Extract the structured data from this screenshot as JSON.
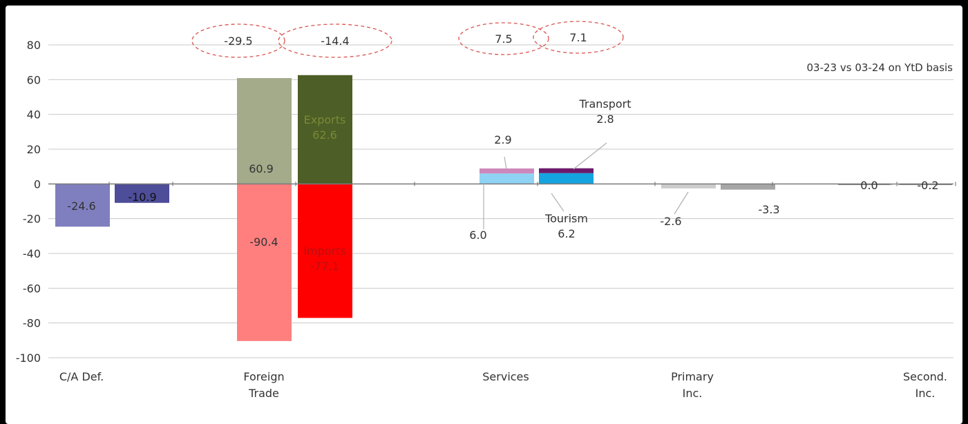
{
  "chart_data": {
    "type": "bar",
    "subtitle": "03-23 vs 03-24 on YtD basis",
    "ylim": [
      -100,
      80
    ],
    "yticks": [
      80,
      60,
      40,
      20,
      0,
      -20,
      -40,
      -60,
      -80,
      -100
    ],
    "grid": true,
    "categories": [
      {
        "lines": [
          "C/A Def."
        ]
      },
      {
        "lines": [
          "Foreign",
          "Trade"
        ]
      },
      {
        "lines": [
          "Services"
        ]
      },
      {
        "lines": [
          "Primary",
          "Inc."
        ]
      },
      {
        "lines": [
          "Second.",
          "Inc."
        ]
      }
    ],
    "bars": [
      {
        "name": "C/A Def. 03-23",
        "segments": [
          {
            "value": -24.6,
            "color": "#7f7fbf",
            "label": "-24.6"
          }
        ]
      },
      {
        "name": "C/A Def. 03-24",
        "segments": [
          {
            "value": -10.9,
            "color": "#4d4d99",
            "label": "-10.9"
          }
        ]
      },
      {
        "name": "Foreign Trade 03-23",
        "segments": [
          {
            "value": 60.9,
            "color": "#a3ab8a",
            "label": "60.9"
          },
          {
            "value": -90.4,
            "color": "#ff7f7f",
            "label": "-90.4"
          }
        ]
      },
      {
        "name": "Foreign Trade 03-24",
        "segments": [
          {
            "value": 62.6,
            "color": "#4d5e26",
            "label": "Exports\n62.6"
          },
          {
            "value": -77.1,
            "color": "#ff0000",
            "label": "Imports\n-77.1"
          }
        ]
      },
      {
        "name": "Services 03-23",
        "segments": [
          {
            "value": 6.0,
            "color": "#8fd3f4",
            "label": "6.0"
          },
          {
            "value": 2.9,
            "color": "#cc88bb",
            "label": "2.9"
          }
        ]
      },
      {
        "name": "Services 03-24",
        "segments": [
          {
            "value": 6.2,
            "color": "#14a4e0",
            "label": "Tourism\n6.2"
          },
          {
            "value": 2.8,
            "color": "#6b1a6b",
            "label": "Transport\n2.8"
          }
        ]
      },
      {
        "name": "Primary Inc. 03-23",
        "segments": [
          {
            "value": -2.6,
            "color": "#cccccc",
            "label": "-2.6"
          }
        ]
      },
      {
        "name": "Primary Inc. 03-24",
        "segments": [
          {
            "value": -3.3,
            "color": "#a6a6a6",
            "label": "-3.3"
          }
        ]
      },
      {
        "name": "Second. Inc. 03-23",
        "segments": [
          {
            "value": 0.0,
            "color": "#666666",
            "label": "0.0"
          }
        ]
      },
      {
        "name": "Second. Inc. 03-24",
        "segments": [
          {
            "value": -0.2,
            "color": "#666666",
            "label": "-0.2"
          }
        ]
      }
    ],
    "balance_annotations": [
      {
        "group": "Foreign Trade 03-23",
        "value": "-29.5"
      },
      {
        "group": "Foreign Trade 03-24",
        "value": "-14.4"
      },
      {
        "group": "Services 03-23",
        "value": "7.5"
      },
      {
        "group": "Services 03-24",
        "value": "7.1"
      }
    ]
  }
}
